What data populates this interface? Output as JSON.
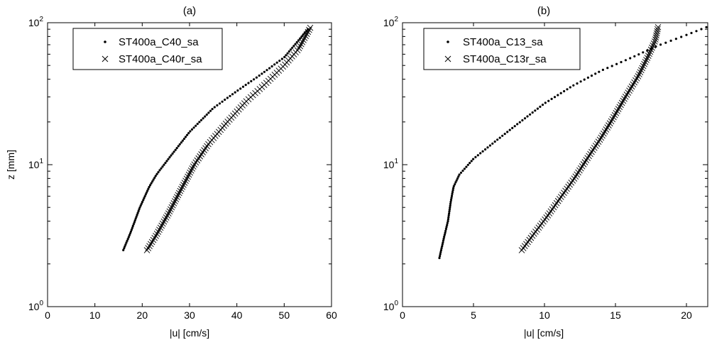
{
  "chart_data": [
    {
      "type": "scatter",
      "title": "(a)",
      "xlabel": "|u| [cm/s]",
      "ylabel": "z [mm]",
      "xlim": [
        0,
        60
      ],
      "ylim": [
        1,
        100
      ],
      "yscale": "log",
      "grid": false,
      "legend_position": "top-left",
      "x_ticks": [
        {
          "v": 0,
          "label": "0"
        },
        {
          "v": 10,
          "label": "10"
        },
        {
          "v": 20,
          "label": "20"
        },
        {
          "v": 30,
          "label": "30"
        },
        {
          "v": 40,
          "label": "40"
        },
        {
          "v": 50,
          "label": "50"
        },
        {
          "v": 60,
          "label": "60"
        }
      ],
      "y_ticks": [
        {
          "v": 1,
          "base": "10",
          "exp": "0"
        },
        {
          "v": 10,
          "base": "10",
          "exp": "1"
        },
        {
          "v": 100,
          "base": "10",
          "exp": "2"
        }
      ],
      "series": [
        {
          "name": "ST400a_C40_sa",
          "marker": "dot",
          "profile": [
            [
              16,
              2.5
            ],
            [
              17.5,
              3.3
            ],
            [
              19.5,
              5
            ],
            [
              21.5,
              7
            ],
            [
              23,
              8.5
            ],
            [
              26,
              11.5
            ],
            [
              30,
              17
            ],
            [
              35,
              25
            ],
            [
              40,
              33
            ],
            [
              45,
              43
            ],
            [
              50,
              57
            ],
            [
              55,
              90
            ]
          ]
        },
        {
          "name": "ST400a_C40r_sa",
          "marker": "x",
          "profile": [
            [
              21,
              2.5
            ],
            [
              23,
              3.2
            ],
            [
              25.5,
              4.5
            ],
            [
              28,
              6.5
            ],
            [
              31,
              10
            ],
            [
              34,
              14
            ],
            [
              38,
              20
            ],
            [
              42,
              28
            ],
            [
              46,
              37
            ],
            [
              50,
              50
            ],
            [
              53,
              65
            ],
            [
              55.5,
              92
            ]
          ]
        }
      ]
    },
    {
      "type": "scatter",
      "title": "(b)",
      "xlabel": "|u| [cm/s]",
      "ylabel": "",
      "xlim": [
        0,
        21.5
      ],
      "ylim": [
        1,
        100
      ],
      "yscale": "log",
      "grid": false,
      "legend_position": "top-left",
      "x_ticks": [
        {
          "v": 0,
          "label": "0"
        },
        {
          "v": 5,
          "label": "5"
        },
        {
          "v": 10,
          "label": "10"
        },
        {
          "v": 15,
          "label": "15"
        },
        {
          "v": 20,
          "label": "20"
        }
      ],
      "y_ticks": [
        {
          "v": 1,
          "base": "10",
          "exp": "0"
        },
        {
          "v": 10,
          "base": "10",
          "exp": "1"
        },
        {
          "v": 100,
          "base": "10",
          "exp": "2"
        }
      ],
      "series": [
        {
          "name": "ST400a_C13_sa",
          "marker": "dot",
          "profile": [
            [
              2.6,
              2.2
            ],
            [
              2.9,
              3.0
            ],
            [
              3.2,
              4.0
            ],
            [
              3.4,
              5.5
            ],
            [
              3.6,
              7.0
            ],
            [
              4.0,
              8.5
            ],
            [
              5.0,
              11
            ],
            [
              6.5,
              14.5
            ],
            [
              8,
              19
            ],
            [
              10,
              27
            ],
            [
              12,
              36
            ],
            [
              14,
              46
            ],
            [
              16,
              56
            ],
            [
              18,
              69
            ],
            [
              20,
              82
            ],
            [
              21.4,
              93
            ]
          ]
        },
        {
          "name": "ST400a_C13r_sa",
          "marker": "x",
          "profile": [
            [
              8.4,
              2.5
            ],
            [
              9.2,
              3.2
            ],
            [
              10.1,
              4.2
            ],
            [
              11.1,
              5.8
            ],
            [
              12.1,
              8
            ],
            [
              13,
              11
            ],
            [
              13.9,
              15
            ],
            [
              14.8,
              21
            ],
            [
              15.7,
              30
            ],
            [
              16.6,
              42
            ],
            [
              17.3,
              58
            ],
            [
              17.8,
              75
            ],
            [
              18,
              93
            ]
          ]
        }
      ]
    }
  ]
}
